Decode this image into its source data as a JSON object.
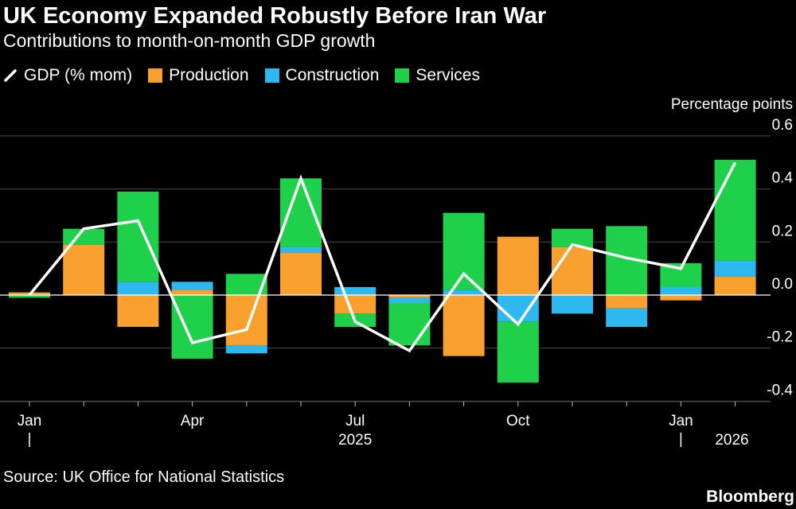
{
  "title": "UK Economy Expanded Robustly Before Iran War",
  "subtitle": "Contributions to month-on-month GDP growth",
  "legend": {
    "gdp": "GDP (% mom)",
    "production": "Production",
    "construction": "Construction",
    "services": "Services"
  },
  "colors": {
    "background": "#000000",
    "production": "#f9a02e",
    "construction": "#2db8f0",
    "services": "#1fd14a",
    "gdp": "#ffffff",
    "grid": "#4a4a4a"
  },
  "source": "Source: UK Office for National Statistics",
  "brand": "Bloomberg",
  "chart_data": {
    "type": "bar",
    "stacked": true,
    "title": "UK Economy Expanded Robustly Before Iran War",
    "subtitle": "Contributions to month-on-month GDP growth",
    "ylabel": "Percentage points",
    "ylim": [
      -0.4,
      0.6
    ],
    "yticks": [
      0.6,
      0.4,
      0.2,
      0.0,
      -0.2,
      -0.4
    ],
    "ytick_labels": [
      "0.6",
      "0.4",
      "0.2",
      "0.0",
      "-0.2",
      "-0.4"
    ],
    "grid": true,
    "legend_position": "top-left",
    "categories": [
      "Jan 2025",
      "Feb 2025",
      "Mar 2025",
      "Apr 2025",
      "May 2025",
      "Jun 2025",
      "Jul 2025",
      "Aug 2025",
      "Sep 2025",
      "Oct 2025",
      "Nov 2025",
      "Dec 2025",
      "Jan 2026",
      "Feb 2026"
    ],
    "x_tick_labels": [
      {
        "label": "Jan",
        "index": 0
      },
      {
        "label": "Apr",
        "index": 3
      },
      {
        "label": "Jul",
        "index": 6
      },
      {
        "label": "Oct",
        "index": 9
      },
      {
        "label": "Jan",
        "index": 12
      }
    ],
    "year_labels": [
      {
        "label": "2025",
        "index": 6
      },
      {
        "label": "2026",
        "index": 12.5
      }
    ],
    "year_separators": [
      0,
      12
    ],
    "series": [
      {
        "name": "Production",
        "values": [
          0.01,
          0.19,
          -0.12,
          0.02,
          -0.19,
          0.16,
          -0.07,
          -0.01,
          -0.23,
          0.22,
          0.18,
          -0.05,
          -0.02,
          0.07
        ]
      },
      {
        "name": "Construction",
        "values": [
          0.0,
          0.0,
          0.05,
          0.03,
          -0.03,
          0.02,
          0.03,
          -0.02,
          0.02,
          -0.1,
          -0.07,
          -0.07,
          0.03,
          0.06
        ]
      },
      {
        "name": "Services",
        "values": [
          -0.01,
          0.06,
          0.34,
          -0.24,
          0.08,
          0.26,
          -0.05,
          -0.16,
          0.29,
          -0.23,
          0.07,
          0.26,
          0.09,
          0.38
        ]
      },
      {
        "name": "GDP (% mom)",
        "type": "line",
        "values": [
          0.0,
          0.25,
          0.28,
          -0.18,
          -0.13,
          0.44,
          -0.1,
          -0.21,
          0.08,
          -0.11,
          0.19,
          0.14,
          0.1,
          0.5
        ]
      }
    ]
  }
}
